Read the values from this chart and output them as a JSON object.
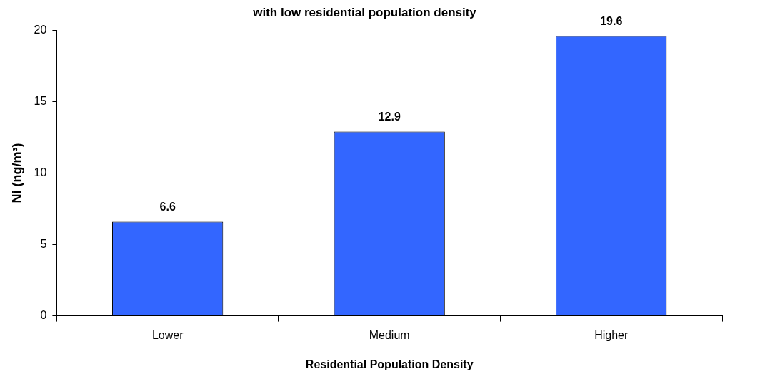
{
  "chart_data": {
    "type": "bar",
    "title": "with low residential population density",
    "categories": [
      "Lower",
      "Medium",
      "Higher"
    ],
    "values": [
      6.6,
      12.9,
      19.6
    ],
    "color": "#3366ff",
    "xlabel": "Residential Population Density",
    "ylabel": "Ni (ng/m³)",
    "ylim": [
      0,
      20
    ],
    "yticks": [
      0,
      5,
      10,
      15,
      20
    ],
    "data_labels": true,
    "grid": false,
    "legend": false
  }
}
